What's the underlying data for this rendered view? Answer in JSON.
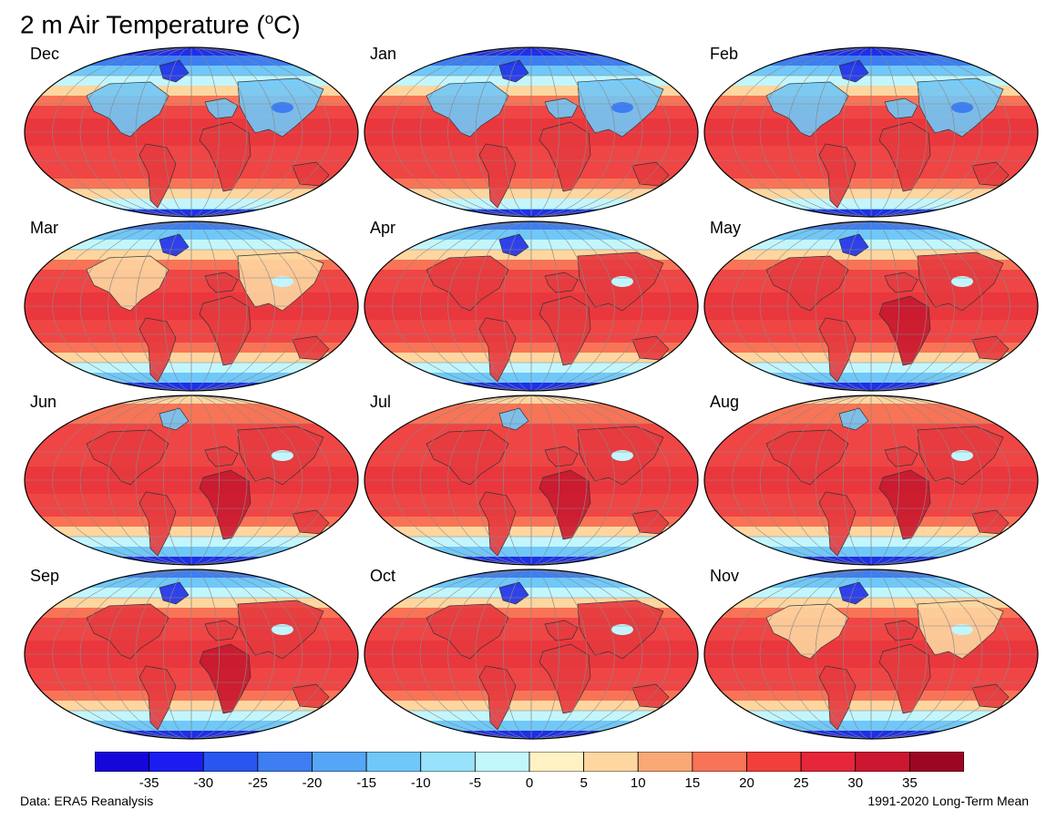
{
  "title_main": "2 m Air Temperature (",
  "title_sup": "o",
  "title_end": "C)",
  "months": [
    "Dec",
    "Jan",
    "Feb",
    "Mar",
    "Apr",
    "May",
    "Jun",
    "Jul",
    "Aug",
    "Sep",
    "Oct",
    "Nov"
  ],
  "colorbar": {
    "ticks": [
      "-35",
      "-30",
      "-25",
      "-20",
      "-15",
      "-10",
      "-5",
      "0",
      "5",
      "10",
      "15",
      "20",
      "25",
      "30",
      "35"
    ],
    "colors": [
      "#1506d9",
      "#1b1df0",
      "#2955f0",
      "#3d7ef2",
      "#55a6f6",
      "#70c8f8",
      "#98e2fb",
      "#c2f6fd",
      "#fff1c4",
      "#fdd6a0",
      "#fba877",
      "#f87456",
      "#f23f3a",
      "#e6263a",
      "#cc1731",
      "#9d0623"
    ]
  },
  "map_colors": {
    "ocean": "#f04545",
    "tropic_dark": "#e62c36",
    "land": "#e63a3e",
    "desert_hot": "#c8182f",
    "cold_deep": "#1f2fe8",
    "cold": "#3d7ef2",
    "cool": "#70c8f8",
    "pale": "#c2f6fd",
    "mild": "#fdd6a0",
    "warm": "#f87456"
  },
  "source": "Data: ERA5 Reanalysis",
  "period": "1991-2020 Long-Term Mean"
}
